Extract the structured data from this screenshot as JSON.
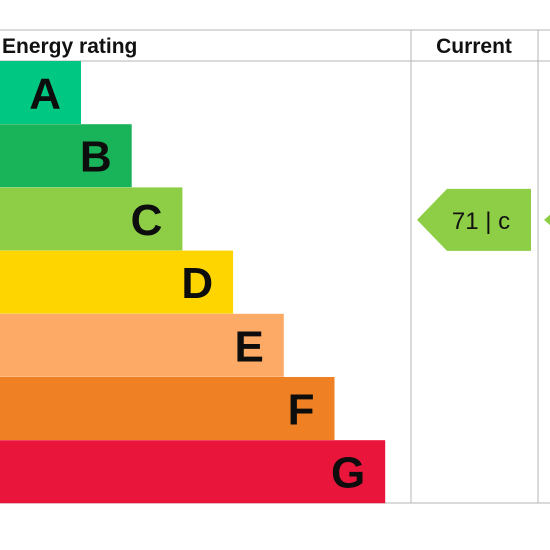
{
  "header": {
    "rating_label": "Energy rating",
    "current_label": "Current"
  },
  "colors": {
    "A": "#00c781",
    "B": "#19b459",
    "C": "#8dce46",
    "D": "#ffd500",
    "E": "#fcaa65",
    "F": "#ef8023",
    "G": "#e9153b",
    "grid": "#b5b5b5"
  },
  "chart_data": {
    "type": "bar",
    "categories": [
      "A",
      "B",
      "C",
      "D",
      "E",
      "F",
      "G"
    ],
    "current": {
      "band": "C",
      "score": "71",
      "separator": "|",
      "letter": "c",
      "text": "71 | c"
    }
  }
}
